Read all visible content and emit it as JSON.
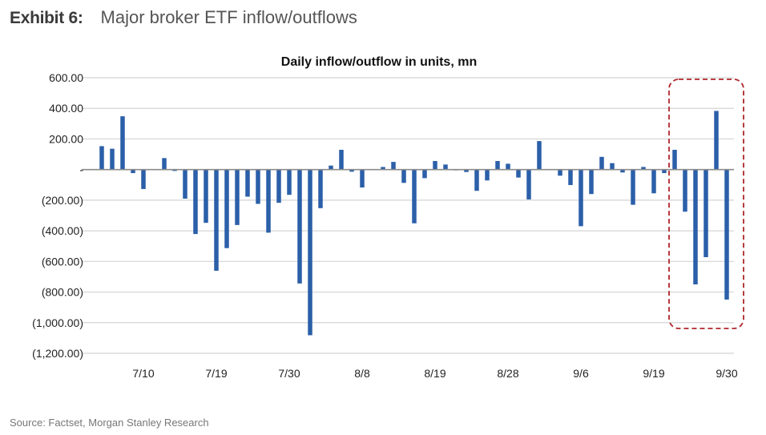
{
  "header": {
    "exhibit": "Exhibit 6:",
    "title": "Major broker ETF inflow/outflows"
  },
  "source": "Source: Factset, Morgan Stanley Research",
  "chart_data": {
    "type": "bar",
    "title": "Daily inflow/outflow in units, mn",
    "xlabel": "",
    "ylabel": "",
    "ylim": [
      -1200,
      600
    ],
    "y_ticks": [
      600,
      400,
      200,
      0,
      -200,
      -400,
      -600,
      -800,
      -1000,
      -1200
    ],
    "y_tick_labels": [
      "600.00",
      "400.00",
      "200.00",
      "-",
      "(200.00)",
      "(400.00)",
      "(600.00)",
      "(800.00)",
      "(1,000.00)",
      "(1,200.00)"
    ],
    "grid": true,
    "bar_color": "#2b5fa8",
    "highlight_color": "#b0262a",
    "categories": [
      "",
      "",
      "",
      "",
      "7/10",
      "",
      "",
      "",
      "",
      "",
      "",
      "7/19",
      "",
      "",
      "",
      "",
      "",
      "",
      "7/30",
      "",
      "",
      "",
      "",
      "",
      "",
      "8/8",
      "",
      "",
      "",
      "",
      "",
      "",
      "8/19",
      "",
      "",
      "",
      "",
      "",
      "",
      "8/28",
      "",
      "",
      "",
      "",
      "",
      "",
      "9/6",
      "",
      "",
      "",
      "",
      "",
      "",
      "9/19",
      "",
      "",
      "",
      "",
      "",
      "",
      "9/30"
    ],
    "values": [
      153,
      136,
      348,
      -23,
      -127,
      0,
      75,
      -9,
      -190,
      -421,
      -348,
      -661,
      -513,
      -362,
      -177,
      -224,
      -412,
      -217,
      -165,
      -744,
      -1082,
      -252,
      26,
      129,
      -14,
      -117,
      0,
      17,
      50,
      -87,
      -351,
      -56,
      56,
      33,
      -5,
      -16,
      -139,
      -71,
      56,
      38,
      -52,
      -195,
      186,
      0,
      -40,
      -101,
      -370,
      -160,
      83,
      42,
      -19,
      -230,
      17,
      -155,
      -23,
      129,
      -275,
      -750,
      -572,
      383,
      -849
    ],
    "highlighted_range": [
      "9/19",
      "9/30"
    ]
  }
}
